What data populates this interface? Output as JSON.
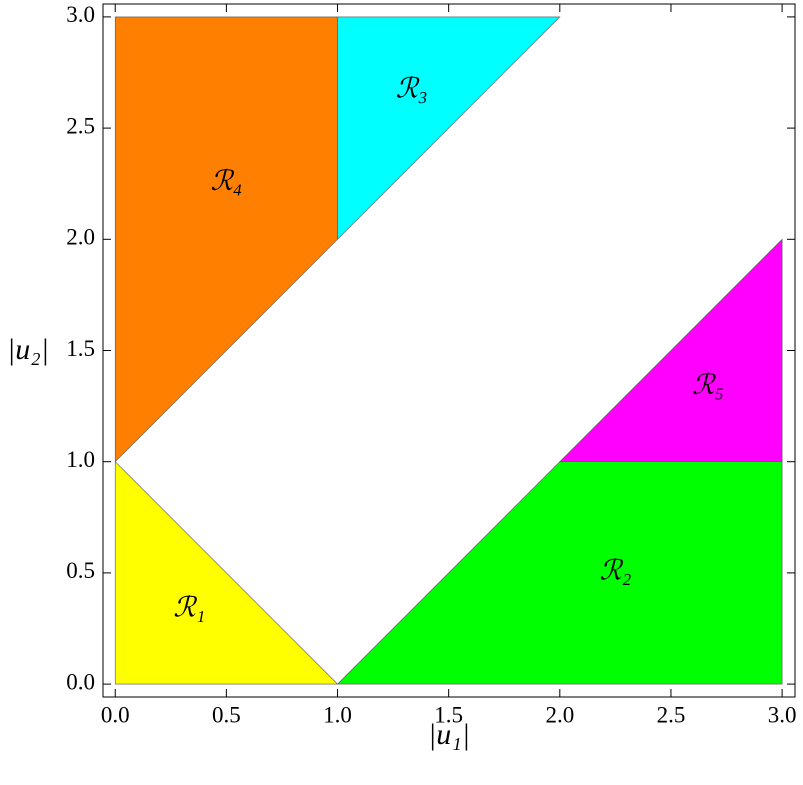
{
  "chart_data": {
    "type": "region",
    "x_label": "|u₁|",
    "y_label": "|u₂|",
    "xlim": [
      -0.055,
      3.058
    ],
    "ylim": [
      -0.058,
      3.058
    ],
    "xticks": [
      {
        "value": 0,
        "label": "0.0"
      },
      {
        "value": 0.5,
        "label": "0.5"
      },
      {
        "value": 1,
        "label": "1.0"
      },
      {
        "value": 1.5,
        "label": "1.5"
      },
      {
        "value": 2,
        "label": "2.0"
      },
      {
        "value": 2.5,
        "label": "2.5"
      },
      {
        "value": 3,
        "label": "3.0"
      }
    ],
    "yticks": [
      {
        "value": 0,
        "label": "0.0"
      },
      {
        "value": 0.5,
        "label": "0.5"
      },
      {
        "value": 1,
        "label": "1.0"
      },
      {
        "value": 1.5,
        "label": "1.5"
      },
      {
        "value": 2,
        "label": "2.0"
      },
      {
        "value": 2.5,
        "label": "2.5"
      },
      {
        "value": 3,
        "label": "3.0"
      }
    ],
    "regions": [
      {
        "name": "ℛ₁",
        "color": "#ffff00",
        "x": [
          0,
          1,
          0
        ],
        "y": [
          0,
          0,
          1
        ]
      },
      {
        "name": "ℛ₂",
        "color": "#00ff00",
        "x": [
          1,
          3,
          3,
          2
        ],
        "y": [
          0,
          0,
          1,
          1
        ]
      },
      {
        "name": "ℛ₃",
        "color": "#00ffff",
        "x": [
          1,
          1,
          2
        ],
        "y": [
          2,
          3,
          3
        ]
      },
      {
        "name": "ℛ₄",
        "color": "#ff8000",
        "x": [
          0,
          1,
          1,
          0
        ],
        "y": [
          1,
          2,
          3,
          3
        ]
      },
      {
        "name": "ℛ₅",
        "color": "#ff00ff",
        "x": [
          2,
          3,
          3
        ],
        "y": [
          1,
          1,
          2
        ]
      }
    ]
  }
}
